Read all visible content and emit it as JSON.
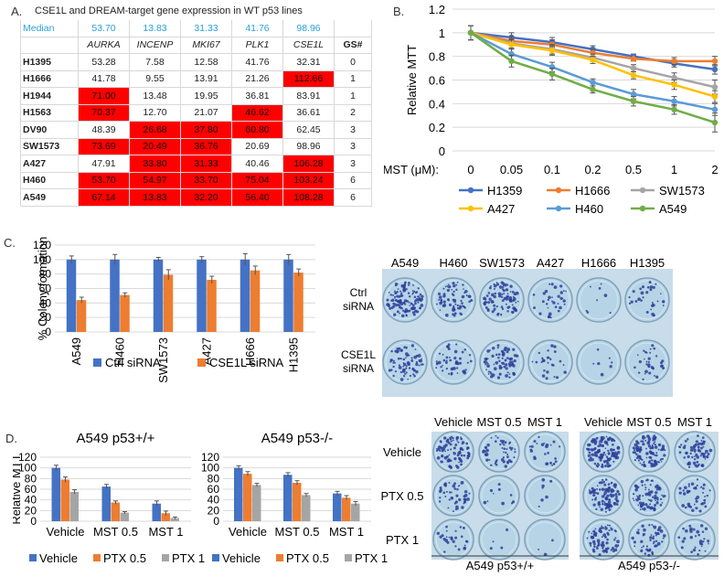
{
  "panels": {
    "a": "A.",
    "b": "B.",
    "c": "C.",
    "d": "D."
  },
  "panel_a": {
    "title": "CSE1L and DREAM-target gene expression in WT p53 lines",
    "median_label": "Median",
    "medians": [
      "53.70",
      "13.83",
      "31.33",
      "41.76",
      "98.96"
    ],
    "genes": [
      "AURKA",
      "INCENP",
      "MKI67",
      "PLK1",
      "CSE1L"
    ],
    "gs_header": "GS#",
    "rows": [
      {
        "name": "H1395",
        "values": [
          "53.28",
          "7.58",
          "12.58",
          "41.76",
          "32.31"
        ],
        "red": [
          false,
          false,
          false,
          false,
          false
        ],
        "gs": "0"
      },
      {
        "name": "H1666",
        "values": [
          "41.78",
          "9.55",
          "13.91",
          "21.26",
          "112.66"
        ],
        "red": [
          false,
          false,
          false,
          false,
          true
        ],
        "gs": "1"
      },
      {
        "name": "H1944",
        "values": [
          "71.00",
          "13.48",
          "19.95",
          "36.81",
          "83.91"
        ],
        "red": [
          true,
          false,
          false,
          false,
          false
        ],
        "gs": "1"
      },
      {
        "name": "H1563",
        "values": [
          "70.37",
          "12.70",
          "21.07",
          "46.62",
          "36.61"
        ],
        "red": [
          true,
          false,
          false,
          true,
          false
        ],
        "gs": "2"
      },
      {
        "name": "DV90",
        "values": [
          "48.39",
          "26.68",
          "37.80",
          "60.80",
          "62.45"
        ],
        "red": [
          false,
          true,
          true,
          true,
          false
        ],
        "gs": "3"
      },
      {
        "name": "SW1573",
        "values": [
          "73.69",
          "20.49",
          "36.76",
          "20.69",
          "98.96"
        ],
        "red": [
          true,
          true,
          true,
          false,
          false
        ],
        "gs": "3"
      },
      {
        "name": "A427",
        "values": [
          "47.91",
          "33.80",
          "31.33",
          "40.46",
          "106.28"
        ],
        "red": [
          false,
          true,
          true,
          false,
          true
        ],
        "gs": "3"
      },
      {
        "name": "H460",
        "values": [
          "53.70",
          "54.97",
          "33.70",
          "75.04",
          "103.24"
        ],
        "red": [
          true,
          true,
          true,
          true,
          true
        ],
        "gs": "6"
      },
      {
        "name": "A549",
        "values": [
          "67.14",
          "13.83",
          "32.20",
          "56.40",
          "108.28"
        ],
        "red": [
          true,
          true,
          true,
          true,
          true
        ],
        "gs": "6"
      }
    ]
  },
  "chart_data": [
    {
      "id": "B",
      "type": "line",
      "xlabel": "MST (μM):",
      "ylabel": "Relative MTT",
      "x": [
        "0",
        "0.05",
        "0.1",
        "0.2",
        "0.5",
        "1",
        "2"
      ],
      "ylim": [
        0,
        1.2
      ],
      "yticks": [
        "0",
        "0.2",
        "0.4",
        "0.6",
        "0.8",
        "1",
        "1.2"
      ],
      "legend": "bottom",
      "series": [
        {
          "name": "H1359",
          "color": "#4472c4",
          "values": [
            1.0,
            0.96,
            0.92,
            0.86,
            0.8,
            0.74,
            0.69
          ],
          "err": [
            0.06,
            0.04,
            0.04,
            0.03,
            0.02,
            0.03,
            0.04
          ]
        },
        {
          "name": "H1666",
          "color": "#ed7d31",
          "values": [
            1.0,
            0.93,
            0.9,
            0.83,
            0.78,
            0.76,
            0.76
          ],
          "err": [
            0.06,
            0.04,
            0.04,
            0.03,
            0.02,
            0.03,
            0.04
          ]
        },
        {
          "name": "SW1573",
          "color": "#a5a5a5",
          "values": [
            1.0,
            0.91,
            0.86,
            0.79,
            0.7,
            0.62,
            0.54
          ],
          "err": [
            0.06,
            0.04,
            0.04,
            0.03,
            0.03,
            0.04,
            0.06
          ]
        },
        {
          "name": "A427",
          "color": "#ffc000",
          "values": [
            1.0,
            0.9,
            0.85,
            0.77,
            0.64,
            0.56,
            0.46
          ],
          "err": [
            0.06,
            0.04,
            0.04,
            0.03,
            0.03,
            0.04,
            0.05
          ]
        },
        {
          "name": "H460",
          "color": "#5b9bd5",
          "values": [
            1.0,
            0.82,
            0.71,
            0.58,
            0.48,
            0.42,
            0.35
          ],
          "err": [
            0.06,
            0.05,
            0.04,
            0.03,
            0.04,
            0.04,
            0.05
          ]
        },
        {
          "name": "A549",
          "color": "#70ad47",
          "values": [
            1.0,
            0.76,
            0.65,
            0.52,
            0.42,
            0.35,
            0.24
          ],
          "err": [
            0.06,
            0.05,
            0.05,
            0.03,
            0.04,
            0.04,
            0.08
          ]
        }
      ]
    },
    {
      "id": "C",
      "type": "bar",
      "ylabel": "% Colony formation",
      "categories": [
        "A549",
        "H460",
        "SW1573",
        "A427",
        "H666",
        "H1395"
      ],
      "ylim": [
        0,
        120
      ],
      "yticks": [
        "0",
        "20",
        "40",
        "60",
        "80",
        "100",
        "120"
      ],
      "legend": "bottom",
      "series": [
        {
          "name": "Ctrl siRNA",
          "color": "#4472c4",
          "values": [
            100,
            100,
            100,
            100,
            100,
            100
          ],
          "err": [
            5,
            7,
            3,
            4,
            8,
            7
          ]
        },
        {
          "name": "CSE1L siRNA",
          "color": "#ed7d31",
          "values": [
            44,
            51,
            79,
            72,
            85,
            82
          ],
          "err": [
            4,
            3,
            7,
            5,
            6,
            5
          ]
        }
      ]
    },
    {
      "id": "D1",
      "type": "bar",
      "title": "A549 p53+/+",
      "ylabel": "Relative MTT",
      "categories": [
        "Vehicle",
        "MST 0.5",
        "MST 1"
      ],
      "ylim": [
        0,
        120
      ],
      "yticks": [
        "0",
        "20",
        "40",
        "60",
        "80",
        "100",
        "120"
      ],
      "legend": "bottom",
      "series": [
        {
          "name": "Vehicle",
          "color": "#4472c4",
          "values": [
            100,
            65,
            33
          ],
          "err": [
            5,
            4,
            5
          ]
        },
        {
          "name": "PTX 0.5",
          "color": "#ed7d31",
          "values": [
            78,
            35,
            15
          ],
          "err": [
            5,
            3,
            4
          ]
        },
        {
          "name": "PTX 1",
          "color": "#a5a5a5",
          "values": [
            55,
            16,
            6
          ],
          "err": [
            4,
            2,
            2
          ]
        }
      ]
    },
    {
      "id": "D2",
      "type": "bar",
      "title": "A549 p53-/-",
      "categories": [
        "Vehicle",
        "MST 0.5",
        "MST 1"
      ],
      "ylim": [
        0,
        120
      ],
      "yticks": [
        "0",
        "20",
        "40",
        "60",
        "80",
        "100",
        "120"
      ],
      "legend": "bottom",
      "series": [
        {
          "name": "Vehicle",
          "color": "#4472c4",
          "values": [
            100,
            87,
            52
          ],
          "err": [
            4,
            4,
            4
          ]
        },
        {
          "name": "PTX 0.5",
          "color": "#ed7d31",
          "values": [
            89,
            72,
            44
          ],
          "err": [
            4,
            4,
            4
          ]
        },
        {
          "name": "PTX 1",
          "color": "#a5a5a5",
          "values": [
            68,
            49,
            33
          ],
          "err": [
            3,
            3,
            4
          ]
        }
      ]
    }
  ],
  "plate_c": {
    "col_labels": [
      "A549",
      "H460",
      "SW1573",
      "A427",
      "H1666",
      "H1395"
    ],
    "row_labels": [
      "Ctrl\nsiRNA",
      "CSE1L\nsiRNA"
    ],
    "density": [
      [
        0.9,
        0.55,
        0.7,
        0.25,
        0.06,
        0.25
      ],
      [
        0.55,
        0.35,
        0.55,
        0.2,
        0.05,
        0.25
      ]
    ]
  },
  "plate_d": {
    "col_labels": [
      "Vehicle",
      "MST 0.5",
      "MST 1"
    ],
    "row_labels": [
      "Vehicle",
      "PTX 0.5",
      "PTX 1"
    ],
    "group_labels": [
      "A549 p53+/+",
      "A549 p53-/-"
    ],
    "density_left": [
      [
        0.65,
        0.4,
        0.2
      ],
      [
        0.35,
        0.08,
        0.05
      ],
      [
        0.2,
        0.03,
        0.02
      ]
    ],
    "density_right": [
      [
        0.9,
        0.85,
        0.5
      ],
      [
        0.7,
        0.6,
        0.35
      ],
      [
        0.55,
        0.4,
        0.25
      ]
    ]
  }
}
